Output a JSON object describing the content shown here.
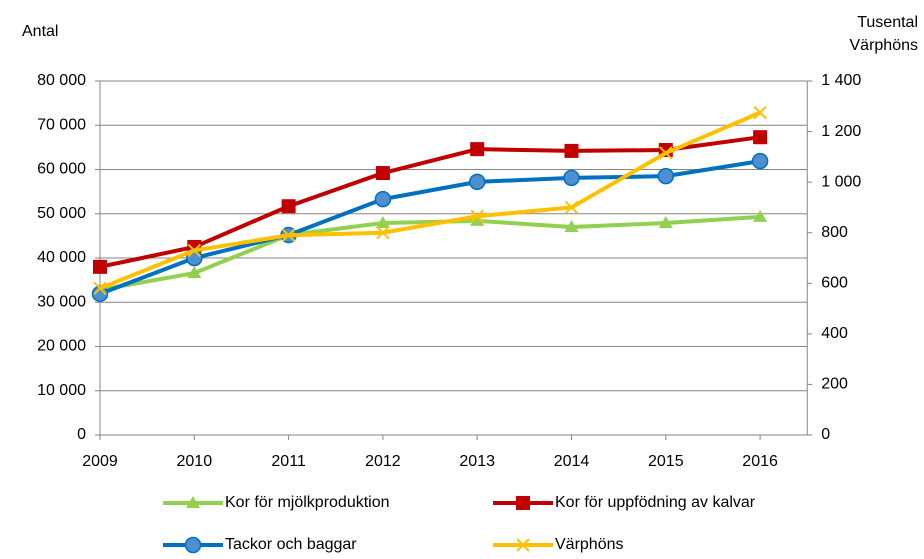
{
  "chart_data": {
    "type": "line",
    "y_label": "Antal",
    "y2_label": [
      "Tusental",
      "Värphöns"
    ],
    "categories": [
      "2009",
      "2010",
      "2011",
      "2012",
      "2013",
      "2014",
      "2015",
      "2016"
    ],
    "ylim": [
      0,
      80000
    ],
    "yticks": [
      0,
      {
        "value": 10000,
        "label": "10 000"
      },
      {
        "value": 20000,
        "label": "20 000"
      },
      {
        "value": 30000,
        "label": "30 000"
      },
      {
        "value": 40000,
        "label": "40 000"
      },
      {
        "value": 50000,
        "label": "50 000"
      },
      {
        "value": 60000,
        "label": "60 000"
      },
      {
        "value": 70000,
        "label": "70 000"
      },
      {
        "value": 80000,
        "label": "80 000"
      }
    ],
    "y2lim": [
      0,
      1400
    ],
    "y2ticks": [
      0,
      200,
      400,
      600,
      800,
      {
        "value": 1000,
        "label": "1 000"
      },
      {
        "value": 1200,
        "label": "1 200"
      },
      {
        "value": 1400,
        "label": "1 400"
      }
    ],
    "grid": true,
    "legend": "bottom",
    "series": [
      {
        "name": "Kor för mjölkproduktion",
        "color": "#92d050",
        "marker": "triangle",
        "values": [
          32800,
          36600,
          45200,
          47900,
          48400,
          47000,
          47900,
          49300
        ]
      },
      {
        "name": "Kor för uppfödning av kalvar",
        "color": "#c00000",
        "marker": "square",
        "values": [
          38000,
          42500,
          51700,
          59200,
          64600,
          64200,
          64400,
          67300
        ]
      },
      {
        "name": "Tackor och baggar",
        "color": "#0070c0",
        "marker": "circle",
        "values": [
          31900,
          40000,
          45200,
          53300,
          57200,
          58100,
          58500,
          61900
        ]
      },
      {
        "name": "Värphöns",
        "color": "#ffc000",
        "marker": "x",
        "axis": "y2",
        "values": [
          580,
          730,
          790,
          800,
          865,
          900,
          1115,
          1275
        ]
      }
    ]
  }
}
